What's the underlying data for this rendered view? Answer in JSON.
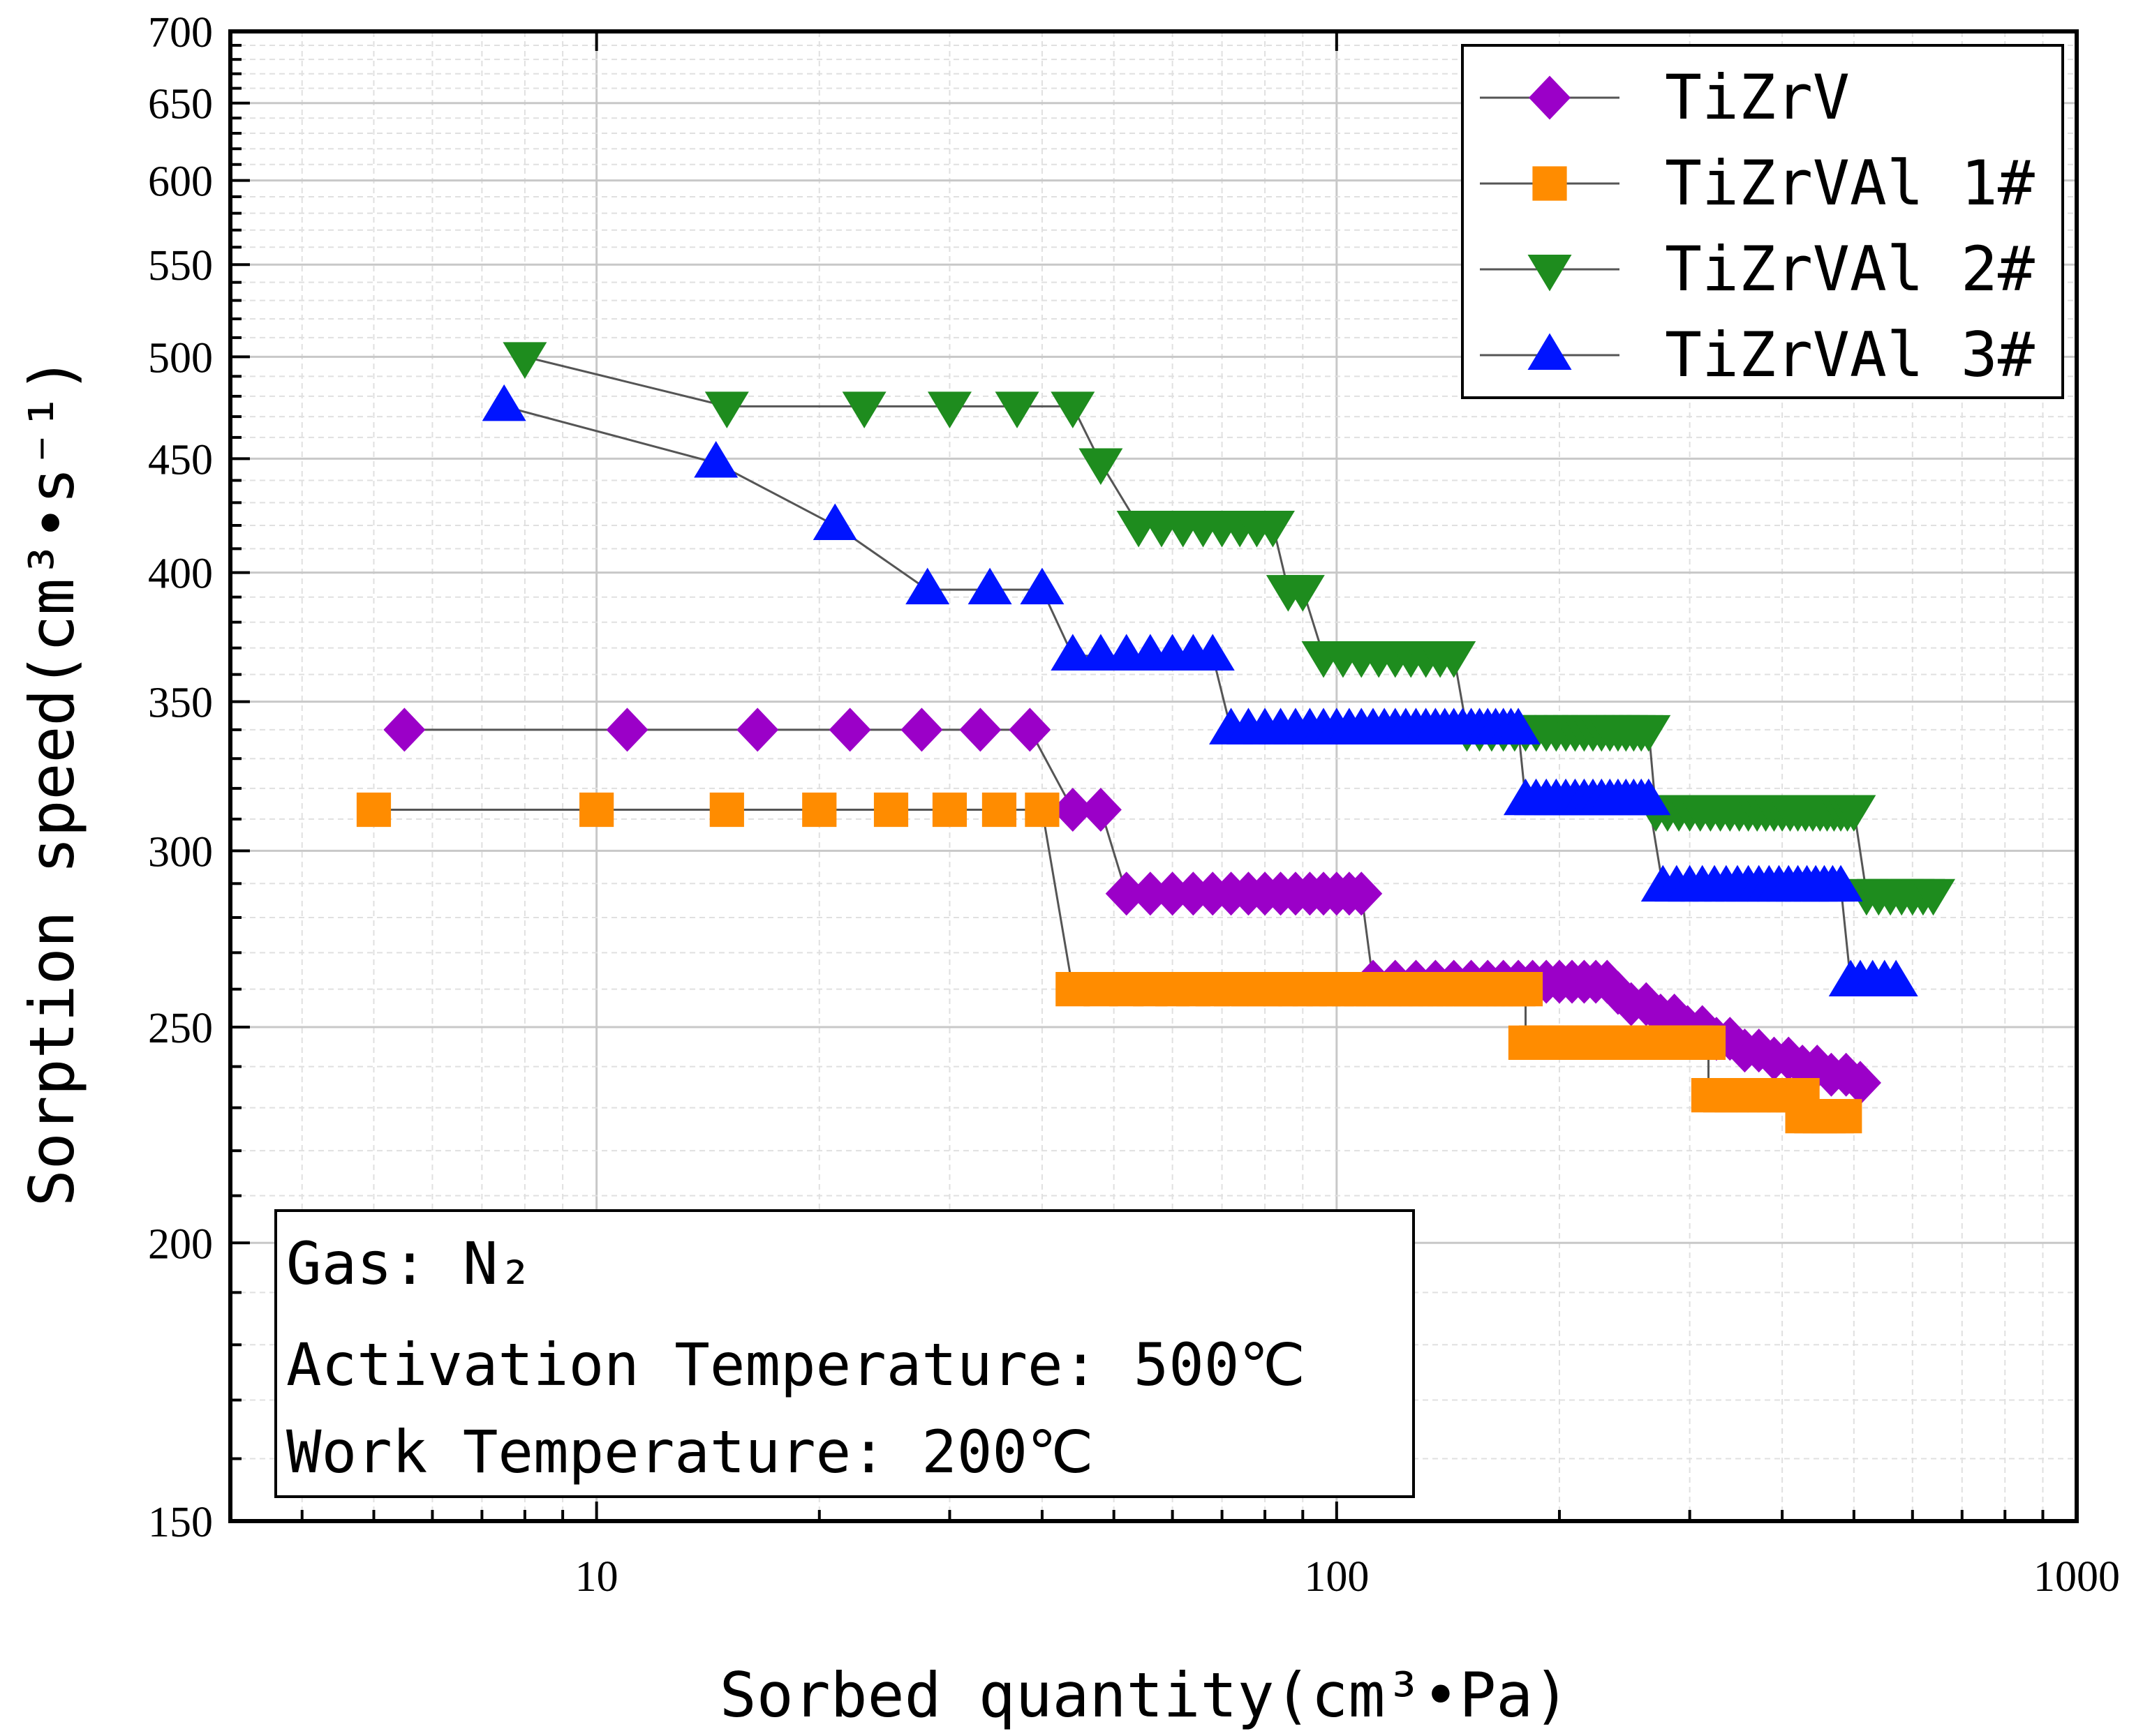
{
  "chart_data": {
    "type": "scatter",
    "xlabel": "Sorbed quantity(cm³•Pa)",
    "ylabel": "Sorption speed(cm³•s⁻¹)",
    "xscale": "log",
    "yscale": "log",
    "xlim": [
      3.2,
      1000
    ],
    "ylim": [
      150,
      700
    ],
    "x_ticks": [
      "10",
      "100",
      "1000"
    ],
    "y_ticks": [
      "150",
      "200",
      "250",
      "300",
      "350",
      "400",
      "450",
      "500",
      "550",
      "600",
      "650",
      "700"
    ],
    "legend_position": "top-right",
    "annotation": {
      "gas": "Gas: N₂",
      "activation": "Activation Temperature: 500℃",
      "work": "Work Temperature: 200℃"
    },
    "colors": {
      "line": "#555555",
      "grid_major": "#c8c8c8",
      "grid_minor": "#e0e0e0"
    },
    "series": [
      {
        "name": "TiZrV",
        "marker": "diamond",
        "color": "#9b00c8",
        "x": [
          5.5,
          11,
          16.5,
          22,
          27.5,
          33,
          38.5,
          44,
          48,
          52,
          56,
          60,
          64,
          68,
          72,
          76,
          80,
          84,
          88,
          92,
          96,
          100,
          104,
          108,
          112,
          120,
          128,
          136,
          144,
          152,
          160,
          168,
          176,
          184,
          192,
          200,
          208,
          216,
          224,
          232,
          240,
          250,
          262,
          274,
          286,
          298,
          312,
          326,
          340,
          356,
          372,
          390,
          408,
          426,
          446,
          466,
          488,
          510
        ],
        "y": [
          340,
          340,
          340,
          340,
          340,
          340,
          340,
          313,
          313,
          287,
          287,
          287,
          287,
          287,
          287,
          287,
          287,
          287,
          287,
          287,
          287,
          287,
          287,
          287,
          262,
          262,
          262,
          262,
          262,
          262,
          262,
          262,
          262,
          262,
          262,
          262,
          262,
          262,
          262,
          262,
          259,
          256,
          256,
          253,
          253,
          250,
          250,
          247,
          247,
          244,
          244,
          242,
          242,
          240,
          240,
          238,
          238,
          236
        ]
      },
      {
        "name": "TiZrVAl 1#",
        "marker": "square",
        "color": "#ff8c00",
        "x": [
          5,
          10,
          15,
          20,
          25,
          30,
          35,
          40,
          44,
          48,
          52,
          56,
          60,
          64,
          68,
          72,
          76,
          80,
          84,
          88,
          92,
          96,
          100,
          104,
          108,
          112,
          116,
          120,
          124,
          128,
          132,
          136,
          140,
          144,
          148,
          152,
          156,
          160,
          164,
          168,
          172,
          176,
          180,
          180,
          186,
          192,
          198,
          204,
          210,
          216,
          222,
          228,
          234,
          240,
          246,
          252,
          258,
          264,
          270,
          276,
          282,
          288,
          294,
          300,
          306,
          312,
          318,
          318,
          330,
          342,
          354,
          366,
          378,
          390,
          402,
          414,
          426,
          426,
          438,
          450,
          462,
          474,
          486
        ],
        "y": [
          313,
          313,
          313,
          313,
          313,
          313,
          313,
          313,
          260,
          260,
          260,
          260,
          260,
          260,
          260,
          260,
          260,
          260,
          260,
          260,
          260,
          260,
          260,
          260,
          260,
          260,
          260,
          260,
          260,
          260,
          260,
          260,
          260,
          260,
          260,
          260,
          260,
          260,
          260,
          260,
          260,
          260,
          260,
          246,
          246,
          246,
          246,
          246,
          246,
          246,
          246,
          246,
          246,
          246,
          246,
          246,
          246,
          246,
          246,
          246,
          246,
          246,
          246,
          246,
          246,
          246,
          246,
          233,
          233,
          233,
          233,
          233,
          233,
          233,
          233,
          233,
          233,
          228,
          228,
          228,
          228,
          228,
          228
        ]
      },
      {
        "name": "TiZrVAl 2#",
        "marker": "triangle-down",
        "color": "#1e8c1e",
        "x": [
          8,
          15,
          23,
          30,
          37,
          44,
          48,
          54,
          58,
          62,
          66,
          70,
          74,
          78,
          82,
          86,
          90,
          96,
          102,
          108,
          114,
          120,
          126,
          132,
          138,
          144,
          150,
          156,
          162,
          168,
          174,
          180,
          186,
          192,
          198,
          204,
          210,
          216,
          222,
          228,
          234,
          240,
          246,
          252,
          258,
          264,
          270,
          280,
          290,
          300,
          310,
          320,
          330,
          340,
          350,
          360,
          370,
          380,
          390,
          400,
          410,
          420,
          430,
          440,
          450,
          460,
          470,
          480,
          490,
          500,
          520,
          540,
          560,
          580,
          600,
          620,
          640
        ],
        "y": [
          500,
          475,
          475,
          475,
          475,
          475,
          448,
          420,
          420,
          420,
          420,
          420,
          420,
          420,
          420,
          393,
          393,
          367,
          367,
          367,
          367,
          367,
          367,
          367,
          367,
          367,
          340,
          340,
          340,
          340,
          340,
          340,
          340,
          340,
          340,
          340,
          340,
          340,
          340,
          340,
          340,
          340,
          340,
          340,
          340,
          340,
          313,
          313,
          313,
          313,
          313,
          313,
          313,
          313,
          313,
          313,
          313,
          313,
          313,
          313,
          313,
          313,
          313,
          313,
          313,
          313,
          313,
          313,
          313,
          313,
          287,
          287,
          287,
          287,
          287,
          287,
          287
        ]
      },
      {
        "name": "TiZrVAl 3#",
        "marker": "triangle-up",
        "color": "#0014ff",
        "x": [
          7.5,
          14.5,
          21,
          28,
          34,
          40,
          44,
          48,
          52,
          56,
          60,
          64,
          68,
          72,
          76,
          80,
          84,
          88,
          92,
          96,
          100,
          104,
          108,
          112,
          116,
          120,
          124,
          128,
          132,
          136,
          140,
          144,
          148,
          152,
          156,
          160,
          164,
          168,
          172,
          176,
          180,
          186,
          192,
          198,
          204,
          210,
          216,
          222,
          228,
          234,
          240,
          246,
          252,
          258,
          264,
          276,
          288,
          300,
          312,
          324,
          336,
          348,
          360,
          372,
          384,
          396,
          408,
          420,
          432,
          444,
          456,
          468,
          480,
          495,
          510,
          530,
          550,
          570
        ],
        "y": [
          475,
          448,
          420,
          393,
          393,
          393,
          367,
          367,
          367,
          367,
          367,
          367,
          367,
          340,
          340,
          340,
          340,
          340,
          340,
          340,
          340,
          340,
          340,
          340,
          340,
          340,
          340,
          340,
          340,
          340,
          340,
          340,
          340,
          340,
          340,
          340,
          340,
          340,
          340,
          340,
          316,
          316,
          316,
          316,
          316,
          316,
          316,
          316,
          316,
          316,
          316,
          316,
          316,
          316,
          316,
          289,
          289,
          289,
          289,
          289,
          289,
          289,
          289,
          289,
          289,
          289,
          289,
          289,
          289,
          289,
          289,
          289,
          289,
          262,
          262,
          262,
          262,
          262
        ]
      }
    ]
  }
}
